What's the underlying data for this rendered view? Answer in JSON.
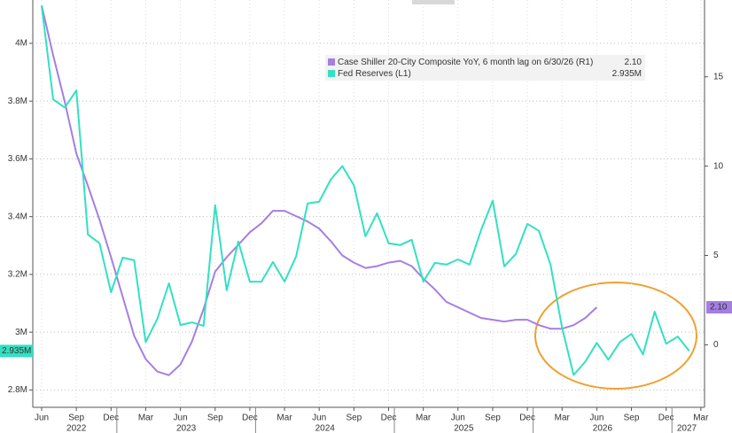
{
  "chart_data": {
    "type": "line",
    "x": [
      "2022-06",
      "2022-07",
      "2022-08",
      "2022-09",
      "2022-10",
      "2022-11",
      "2022-12",
      "2023-01",
      "2023-02",
      "2023-03",
      "2023-04",
      "2023-05",
      "2023-06",
      "2023-07",
      "2023-08",
      "2023-09",
      "2023-10",
      "2023-11",
      "2023-12",
      "2024-01",
      "2024-02",
      "2024-03",
      "2024-04",
      "2024-05",
      "2024-06",
      "2024-07",
      "2024-08",
      "2024-09",
      "2024-10",
      "2024-11",
      "2024-12",
      "2025-01",
      "2025-02",
      "2025-03",
      "2025-04",
      "2025-05",
      "2025-06",
      "2025-07",
      "2025-08",
      "2025-09",
      "2025-10",
      "2025-11",
      "2025-12",
      "2026-01",
      "2026-02",
      "2026-03",
      "2026-04",
      "2026-05",
      "2026-06",
      "2026-07",
      "2026-08",
      "2026-09",
      "2026-10",
      "2026-11",
      "2026-12",
      "2027-01",
      "2027-02",
      "2027-03"
    ],
    "series": [
      {
        "name": "Case Shiller 20-City Composite YoY, 6 month lag on 6/30/26 (R1)",
        "color": "#a57ee3",
        "axis": "y2",
        "last_label": "2.10",
        "values": [
          19.0,
          16.2,
          13.6,
          10.7,
          8.9,
          7.0,
          4.9,
          2.7,
          0.5,
          -0.8,
          -1.5,
          -1.7,
          -1.1,
          0.2,
          2.0,
          4.1,
          4.9,
          5.6,
          6.3,
          6.8,
          7.5,
          7.5,
          7.2,
          6.9,
          6.5,
          5.8,
          5.0,
          4.6,
          4.3,
          4.4,
          4.6,
          4.7,
          4.4,
          3.7,
          3.1,
          2.4,
          2.1,
          1.8,
          1.5,
          1.4,
          1.3,
          1.4,
          1.4,
          1.1,
          0.9,
          0.9,
          1.1,
          1.5,
          2.1,
          null,
          null,
          null,
          null,
          null,
          null,
          null,
          null,
          null
        ]
      },
      {
        "name": "Fed Reserves (L1)",
        "color": "#33e0c2",
        "axis": "y",
        "last_label": "2.935M",
        "values": [
          4.13,
          3.806,
          3.778,
          3.837,
          3.338,
          3.308,
          3.138,
          3.258,
          3.249,
          2.966,
          3.046,
          3.169,
          3.025,
          3.034,
          3.022,
          3.44,
          3.145,
          3.314,
          3.175,
          3.175,
          3.243,
          3.175,
          3.262,
          3.446,
          3.452,
          3.529,
          3.575,
          3.508,
          3.332,
          3.412,
          3.308,
          3.302,
          3.32,
          3.175,
          3.24,
          3.234,
          3.252,
          3.234,
          3.354,
          3.455,
          3.228,
          3.271,
          3.375,
          3.351,
          3.234,
          3.015,
          2.852,
          2.898,
          2.963,
          2.905,
          2.966,
          2.994,
          2.923,
          3.071,
          2.96,
          2.985,
          2.935,
          null
        ]
      }
    ],
    "ylim": [
      2.74,
      4.15
    ],
    "yticks": [
      {
        "value": 2.8,
        "label": "2.8M"
      },
      {
        "value": 3,
        "label": "3M"
      },
      {
        "value": 3.2,
        "label": "3.2M"
      },
      {
        "value": 3.4,
        "label": "3.4M"
      },
      {
        "value": 3.6,
        "label": "3.6M"
      },
      {
        "value": 3.8,
        "label": "3.8M"
      },
      {
        "value": 4,
        "label": "4M"
      }
    ],
    "y2lim": [
      -3.5,
      19.3
    ],
    "y2ticks": [
      0,
      5,
      10,
      15
    ],
    "xticks": [
      {
        "value": "2022-06",
        "label": "Jun"
      },
      {
        "value": "2022-09",
        "label": "Sep"
      },
      {
        "value": "2022-12",
        "label": "Dec"
      },
      {
        "value": "2023-03",
        "label": "Mar"
      },
      {
        "value": "2023-06",
        "label": "Jun"
      },
      {
        "value": "2023-09",
        "label": "Sep"
      },
      {
        "value": "2023-12",
        "label": "Dec"
      },
      {
        "value": "2024-03",
        "label": "Mar"
      },
      {
        "value": "2024-06",
        "label": "Jun"
      },
      {
        "value": "2024-09",
        "label": "Sep"
      },
      {
        "value": "2024-12",
        "label": "Dec"
      },
      {
        "value": "2025-03",
        "label": "Mar"
      },
      {
        "value": "2025-06",
        "label": "Jun"
      },
      {
        "value": "2025-09",
        "label": "Sep"
      },
      {
        "value": "2025-12",
        "label": "Dec"
      },
      {
        "value": "2026-03",
        "label": "Mar"
      },
      {
        "value": "2026-06",
        "label": "Jun"
      },
      {
        "value": "2026-09",
        "label": "Sep"
      },
      {
        "value": "2026-12",
        "label": "Dec"
      },
      {
        "value": "2027-03",
        "label": "Mar"
      }
    ],
    "years": [
      "2022",
      "2023",
      "2024",
      "2025",
      "2026",
      "2027"
    ],
    "grid": true
  }
}
